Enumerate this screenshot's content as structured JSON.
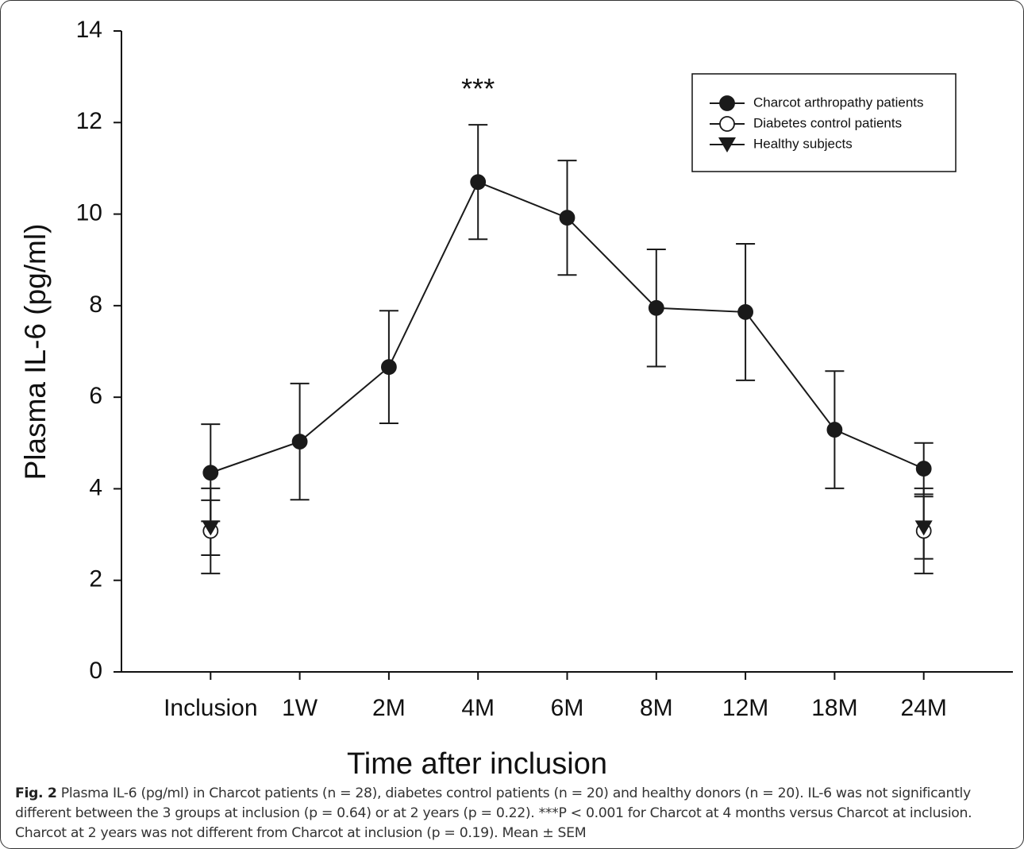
{
  "chart_data": {
    "type": "line",
    "x_label": "Time after inclusion",
    "y_label": "Plasma IL-6 (pg/ml)",
    "categories": [
      "Inclusion",
      "1W",
      "2M",
      "4M",
      "6M",
      "8M",
      "12M",
      "18M",
      "24M"
    ],
    "ylim": [
      0,
      14
    ],
    "yticks": [
      0,
      2,
      4,
      6,
      8,
      10,
      12,
      14
    ],
    "legend_position": "upper right",
    "series": [
      {
        "name": "Charcot arthropathy patients",
        "color": "#1a1a1a",
        "marker": "filled-circle",
        "line": true,
        "values": [
          4.35,
          5.03,
          6.66,
          10.7,
          9.92,
          7.95,
          7.86,
          5.29,
          4.44
        ],
        "errors": [
          1.06,
          1.27,
          1.23,
          1.25,
          1.25,
          1.28,
          1.49,
          1.28,
          0.56
        ]
      },
      {
        "name": "Diabetes control patients",
        "color": "#1a1a1a",
        "marker": "open-circle",
        "line": false,
        "values": [
          3.08,
          null,
          null,
          null,
          null,
          null,
          null,
          null,
          3.08
        ],
        "errors": [
          0.93,
          null,
          null,
          null,
          null,
          null,
          null,
          null,
          0.93
        ]
      },
      {
        "name": "Healthy subjects",
        "color": "#1a1a1a",
        "marker": "triangle-down",
        "line": false,
        "values": [
          3.15,
          null,
          null,
          null,
          null,
          null,
          null,
          null,
          3.15
        ],
        "errors": [
          0.6,
          null,
          null,
          null,
          null,
          null,
          null,
          null,
          0.68
        ]
      }
    ],
    "annotations": [
      {
        "text": "***",
        "category": 3,
        "y": 12.9
      }
    ]
  },
  "caption": {
    "label": "Fig. 2",
    "text": "Plasma IL-6 (pg/ml) in Charcot patients (n = 28), diabetes control patients (n = 20) and healthy donors (n = 20). IL-6 was not significantly different between the 3 groups at inclusion (p = 0.64) or at 2 years (p = 0.22). ***P < 0.001 for Charcot at 4 months versus Charcot at inclusion. Charcot at 2 years was not different from Charcot at inclusion (p = 0.19). Mean ± SEM"
  }
}
